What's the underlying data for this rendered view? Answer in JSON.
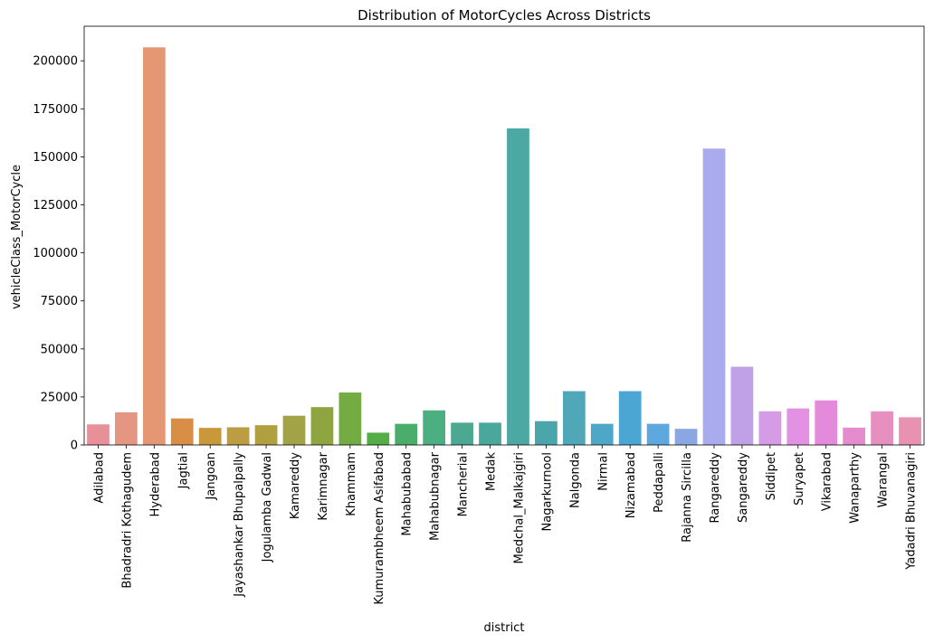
{
  "chart_data": {
    "type": "bar",
    "title": "Distribution of MotorCycles Across Districts",
    "xlabel": "district",
    "ylabel": "vehicleClass_MotorCycle",
    "ylim": [
      0,
      218000
    ],
    "yticks": [
      0,
      25000,
      50000,
      75000,
      100000,
      125000,
      150000,
      175000,
      200000
    ],
    "grid": false,
    "categories": [
      "Adilabad",
      "Bhadradri Kothagudem",
      "Hyderabad",
      "Jagtial",
      "Jangoan",
      "Jayashankar Bhupalpally",
      "Jogulamba Gadwal",
      "Kamareddy",
      "Karimnagar",
      "Khammam",
      "Kumurambheem Asifabad",
      "Mahabubabad",
      "Mahabubnagar",
      "Mancherial",
      "Medak",
      "Medchal_Malkajgiri",
      "Nagarkurnool",
      "Nalgonda",
      "Nirmal",
      "Nizamabad",
      "Peddapalli",
      "Rajanna Sircilla",
      "Rangareddy",
      "Sangareddy",
      "Siddipet",
      "Suryapet",
      "Vikarabad",
      "Wanaparthy",
      "Warangal",
      "Yadadri Bhuvanagiri"
    ],
    "values": [
      10700,
      17000,
      207000,
      13800,
      8900,
      9200,
      10300,
      15200,
      19700,
      27300,
      6400,
      11000,
      18000,
      11600,
      11600,
      164800,
      12400,
      28000,
      11000,
      28000,
      11000,
      8400,
      154300,
      40700,
      17500,
      19000,
      23200,
      9000,
      17500,
      14400
    ],
    "colors": [
      "#e8909a",
      "#e59682",
      "#e59672",
      "#d88f45",
      "#c9983b",
      "#bd9d41",
      "#b0a040",
      "#a2a246",
      "#8fa640",
      "#74ab42",
      "#55ad48",
      "#4aae6a",
      "#4caf82",
      "#4ca891",
      "#49a89b",
      "#4ca8a2",
      "#4ba6ab",
      "#50a7b7",
      "#4da8c8",
      "#4ba6d4",
      "#5ea8e0",
      "#8ba7e3",
      "#aaaaee",
      "#c0a0e7",
      "#d59be5",
      "#e392e3",
      "#e48adb",
      "#e48ccd",
      "#e78fbf",
      "#e891b0"
    ]
  }
}
